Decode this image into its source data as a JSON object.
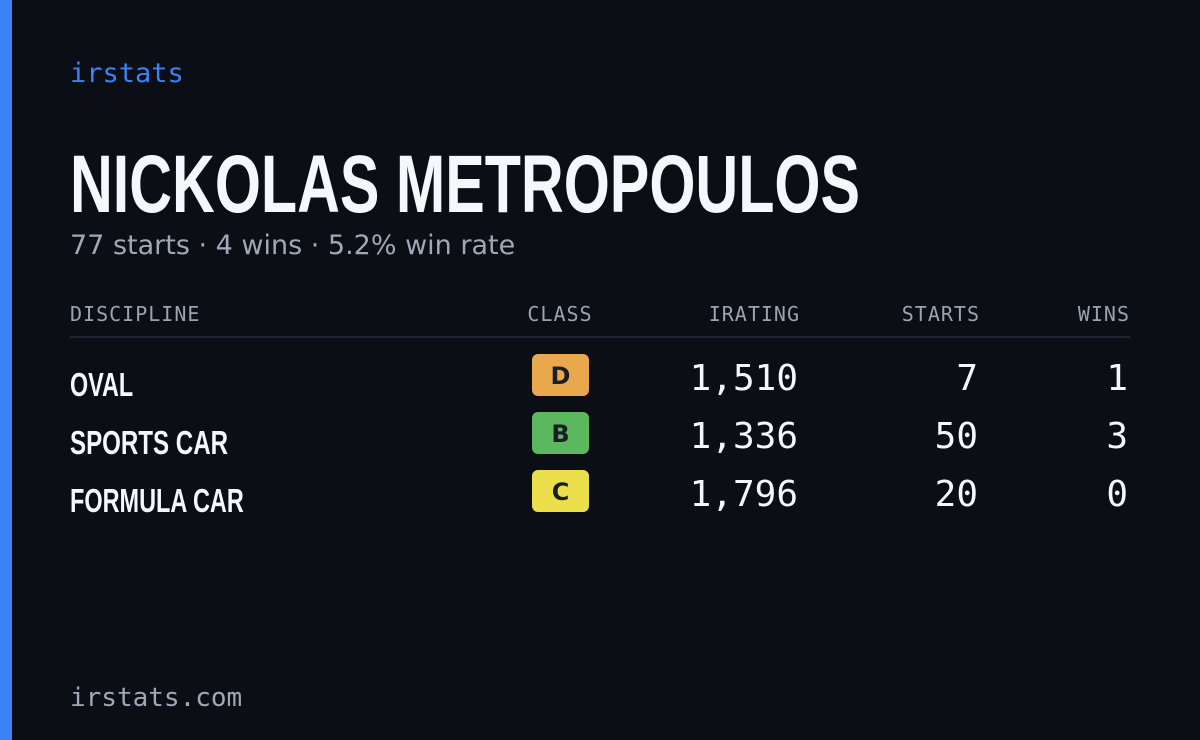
{
  "brand": "irstats",
  "title": "NICKOLAS METROPOULOS",
  "subtitle": "77 starts · 4 wins · 5.2% win rate",
  "table": {
    "headers": [
      "DISCIPLINE",
      "CLASS",
      "IRATING",
      "STARTS",
      "WINS"
    ],
    "rows": [
      {
        "discipline": "OVAL",
        "class": "D",
        "class_color": "#e9a84c",
        "irating": "1,510",
        "starts": "7",
        "wins": "1"
      },
      {
        "discipline": "SPORTS CAR",
        "class": "B",
        "class_color": "#5cb85c",
        "irating": "1,336",
        "starts": "50",
        "wins": "3"
      },
      {
        "discipline": "FORMULA CAR",
        "class": "C",
        "class_color": "#ebe04c",
        "irating": "1,796",
        "starts": "20",
        "wins": "0"
      }
    ]
  },
  "footer": "irstats.com"
}
